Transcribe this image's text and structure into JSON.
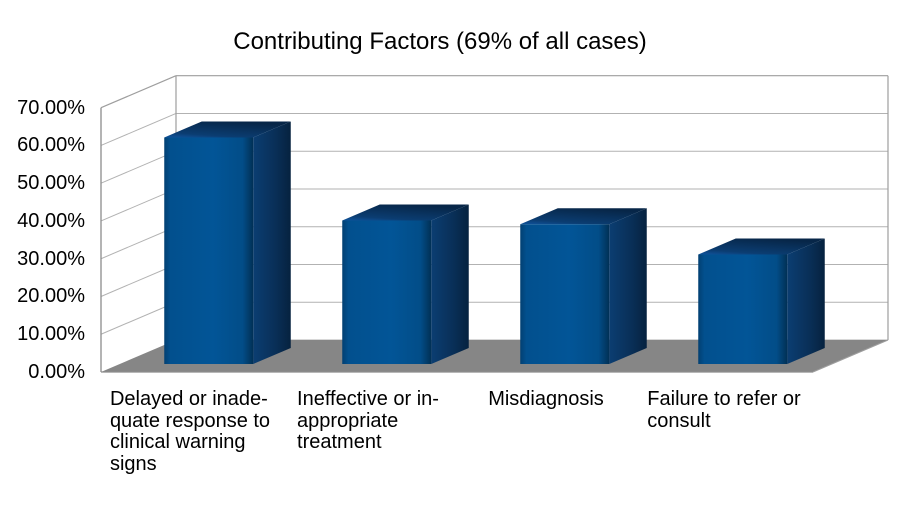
{
  "chart_data": {
    "type": "bar",
    "style": "3d-column",
    "title": "Contributing Factors (69% of all cases)",
    "categories": [
      "Delayed or inadequate response to clinical warning signs",
      "Ineffective or inappropriate treatment",
      "Misdiagnosis",
      "Failure to refer or consult"
    ],
    "category_display_lines": [
      [
        "Delayed or inade-",
        "quate response to",
        "clinical warning",
        "signs"
      ],
      [
        "Ineffective or in-",
        "appropriate",
        "treatment"
      ],
      [
        "Misdiagnosis"
      ],
      [
        "Failure to refer or",
        "consult"
      ]
    ],
    "values": [
      60,
      38,
      37,
      29
    ],
    "value_unit": "%",
    "xlabel": "",
    "ylabel": "",
    "ylim": [
      0,
      70
    ],
    "y_ticks": [
      {
        "value": 0,
        "label": "0.00%"
      },
      {
        "value": 10,
        "label": "10.00%"
      },
      {
        "value": 20,
        "label": "20.00%"
      },
      {
        "value": 30,
        "label": "30.00%"
      },
      {
        "value": 40,
        "label": "40.00%"
      },
      {
        "value": 50,
        "label": "50.00%"
      },
      {
        "value": 60,
        "label": "60.00%"
      },
      {
        "value": 70,
        "label": "70.00%"
      }
    ],
    "grid": true,
    "legend": false,
    "colors": {
      "bar_front": "#02508e",
      "bar_top": "#0a3a6d",
      "bar_side": "#0a3766",
      "floor": "#868686",
      "gridline": "#b2b2b2",
      "frame": "#9e9e9e",
      "text": "#000000",
      "background": "#ffffff"
    }
  }
}
